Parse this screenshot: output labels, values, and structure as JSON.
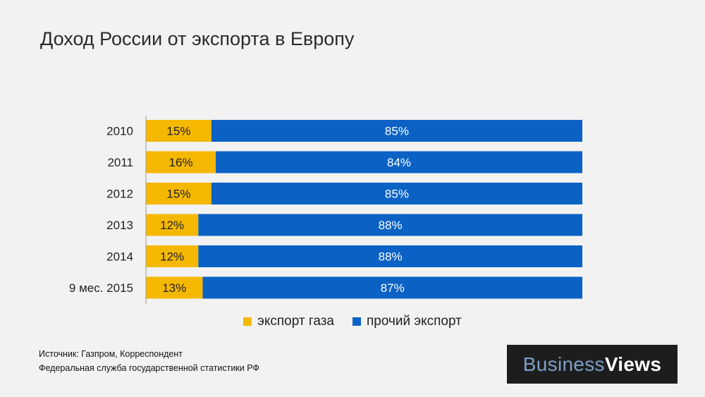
{
  "title": "Доход России от экспорта в Европу",
  "chart_data": {
    "type": "bar",
    "orientation": "horizontal",
    "stacked": true,
    "title": "Доход России от экспорта в Европу",
    "categories": [
      "2010",
      "2011",
      "2012",
      "2013",
      "2014",
      "9 мес. 2015"
    ],
    "series": [
      {
        "name": "экспорт газа",
        "values": [
          15,
          16,
          15,
          12,
          12,
          13
        ],
        "color": "#f5b800"
      },
      {
        "name": "прочий экспорт",
        "values": [
          85,
          84,
          85,
          88,
          88,
          87
        ],
        "color": "#0b62c4"
      }
    ],
    "value_suffix": "%",
    "xlim": [
      0,
      100
    ],
    "legend": "bottom-center"
  },
  "legend": {
    "gas_label": "экспорт газа",
    "other_label": "прочий экспорт"
  },
  "source": {
    "line1": "Источник: Газпром, Корреспондент",
    "line2": "Федеральная служба государственной статистики РФ"
  },
  "logo": {
    "part1": "Business",
    "part2": "Views"
  }
}
